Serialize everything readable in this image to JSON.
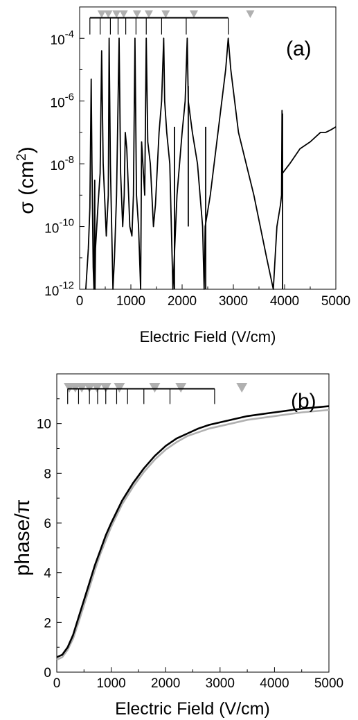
{
  "chart_data": [
    {
      "type": "line",
      "panel_label": "(a)",
      "xlabel": "Electric Field (V/cm)",
      "ylabel_main": "σ (cm",
      "ylabel_sup": "2",
      "ylabel_close": ")",
      "yscale": "log",
      "xlim": [
        0,
        5000
      ],
      "ylim": [
        1e-12,
        0.001
      ],
      "x_ticks": [
        0,
        1000,
        2000,
        3000,
        4000,
        5000
      ],
      "x_tick_labels": [
        "0",
        "1000",
        "2000",
        "3000",
        "4000",
        "5000"
      ],
      "y_tick_exponents": [
        -12,
        -10,
        -8,
        -6,
        -4
      ],
      "y_tick_base": "10",
      "bracket": {
        "top": 0.00045,
        "positions": [
          200,
          400,
          600,
          750,
          900,
          1100,
          1300,
          1600,
          2080,
          2900
        ]
      },
      "markers_x": [
        430,
        560,
        720,
        860,
        1120,
        1350,
        1680,
        2230,
        3330
      ],
      "markers_color": "#b0b0b0",
      "series": [
        {
          "color": "#000000",
          "points": [
            [
              120,
              1e-12
            ],
            [
              170,
              2e-11
            ],
            [
              200,
              4e-10
            ],
            [
              225,
              5e-06
            ],
            [
              240,
              1e-08
            ],
            [
              265,
              5e-12
            ],
            [
              280,
              1e-12
            ],
            [
              295,
              3e-09
            ],
            [
              300,
              1e-12
            ],
            [
              310,
              2e-11
            ],
            [
              360,
              5e-10
            ],
            [
              400,
              5e-09
            ],
            [
              430,
              4e-05
            ],
            [
              460,
              1e-08
            ],
            [
              520,
              5e-11
            ],
            [
              560,
              1e-09
            ],
            [
              575,
              0.0001
            ],
            [
              600,
              1e-08
            ],
            [
              650,
              1e-12
            ],
            [
              680,
              1e-11
            ],
            [
              720,
              1e-09
            ],
            [
              770,
              0.0001
            ],
            [
              800,
              5e-09
            ],
            [
              840,
              1e-10
            ],
            [
              870,
              1e-09
            ],
            [
              890,
              1e-07
            ],
            [
              920,
              3e-08
            ],
            [
              980,
              1e-10
            ],
            [
              1020,
              5e-11
            ],
            [
              1050,
              1e-09
            ],
            [
              1080,
              0.0001
            ],
            [
              1110,
              1e-09
            ],
            [
              1150,
              1e-10
            ],
            [
              1190,
              1e-12
            ],
            [
              1210,
              5e-08
            ],
            [
              1270,
              1e-09
            ],
            [
              1300,
              0.0001
            ],
            [
              1330,
              5e-08
            ],
            [
              1380,
              1e-08
            ],
            [
              1440,
              1e-10
            ],
            [
              1480,
              5e-10
            ],
            [
              1550,
              1e-07
            ],
            [
              1600,
              1e-06
            ],
            [
              1640,
              0.0001
            ],
            [
              1660,
              1e-06
            ],
            [
              1700,
              1e-07
            ],
            [
              1760,
              1e-08
            ],
            [
              1820,
              1e-12
            ],
            [
              1900,
              1e-09
            ],
            [
              2000,
              1e-07
            ],
            [
              2060,
              1e-06
            ],
            [
              2100,
              0.0001
            ],
            [
              2120,
              1e-06
            ],
            [
              2200,
              1e-07
            ],
            [
              2300,
              1e-08
            ],
            [
              2400,
              1e-10
            ],
            [
              2430,
              1e-12
            ],
            [
              2450,
              1e-10
            ],
            [
              2550,
              1e-09
            ],
            [
              2700,
              1e-07
            ],
            [
              2850,
              1e-05
            ],
            [
              2900,
              0.0001
            ],
            [
              2950,
              1e-05
            ],
            [
              3100,
              1e-07
            ],
            [
              3400,
              1e-09
            ],
            [
              3650,
              1e-11
            ],
            [
              3780,
              1e-12
            ],
            [
              3850,
              1e-10
            ],
            [
              3920,
              5e-10
            ],
            [
              3940,
              1e-09
            ],
            [
              3950,
              5e-07
            ],
            [
              3960,
              5e-09
            ],
            [
              4100,
              1e-08
            ],
            [
              4300,
              3e-08
            ],
            [
              4500,
              5e-08
            ],
            [
              4700,
              1e-07
            ],
            [
              4800,
              1e-07
            ],
            [
              4900,
              1.2e-07
            ],
            [
              5000,
              1.5e-07
            ]
          ],
          "spikes": [
            {
              "x": 1850,
              "from": 1.5e-07,
              "to": 1e-12
            },
            {
              "x": 2120,
              "from": 3e-06,
              "to": 1e-10
            },
            {
              "x": 2460,
              "from": 1.5e-07,
              "to": 1e-12
            },
            {
              "x": 3960,
              "from": 4e-07,
              "to": 1e-12
            }
          ]
        }
      ]
    },
    {
      "type": "line",
      "panel_label": "(b)",
      "xlabel": "Electric Field (V/cm)",
      "ylabel": "phase/π",
      "xlim": [
        0,
        5000
      ],
      "ylim": [
        0,
        12
      ],
      "x_ticks": [
        0,
        1000,
        2000,
        3000,
        4000,
        5000
      ],
      "x_tick_labels": [
        "0",
        "1000",
        "2000",
        "3000",
        "4000",
        "5000"
      ],
      "y_ticks": [
        0,
        2,
        4,
        6,
        8,
        10
      ],
      "y_tick_labels": [
        "0",
        "2",
        "4",
        "6",
        "8",
        "10"
      ],
      "bracket": {
        "top": 11.4,
        "positions": [
          200,
          400,
          600,
          750,
          900,
          1100,
          1300,
          1600,
          2080,
          2900
        ]
      },
      "markers_x": [
        230,
        340,
        460,
        600,
        740,
        900,
        1150,
        1800,
        2280,
        3400
      ],
      "markers_color": "#b0b0b0",
      "series": [
        {
          "color": "#000000",
          "x": [
            0,
            100,
            200,
            300,
            400,
            500,
            600,
            700,
            800,
            900,
            1000,
            1200,
            1400,
            1600,
            1800,
            2000,
            2200,
            2400,
            2600,
            2800,
            3000,
            3500,
            4000,
            4500,
            5000
          ],
          "y": [
            0.6,
            0.7,
            1.0,
            1.5,
            2.2,
            2.9,
            3.6,
            4.3,
            4.9,
            5.5,
            6.0,
            6.9,
            7.6,
            8.2,
            8.7,
            9.1,
            9.4,
            9.6,
            9.8,
            9.95,
            10.05,
            10.3,
            10.45,
            10.6,
            10.7
          ]
        },
        {
          "color": "#b0b0b0",
          "x": [
            0,
            100,
            200,
            300,
            400,
            500,
            600,
            700,
            800,
            900,
            1000,
            1200,
            1400,
            1600,
            1800,
            2000,
            2200,
            2400,
            2600,
            2800,
            3000,
            3500,
            4000,
            4500,
            5000
          ],
          "y": [
            0.5,
            0.6,
            0.9,
            1.35,
            2.0,
            2.7,
            3.4,
            4.1,
            4.75,
            5.3,
            5.85,
            6.75,
            7.45,
            8.05,
            8.55,
            8.95,
            9.25,
            9.5,
            9.65,
            9.8,
            9.9,
            10.15,
            10.3,
            10.45,
            10.55
          ]
        }
      ]
    }
  ]
}
